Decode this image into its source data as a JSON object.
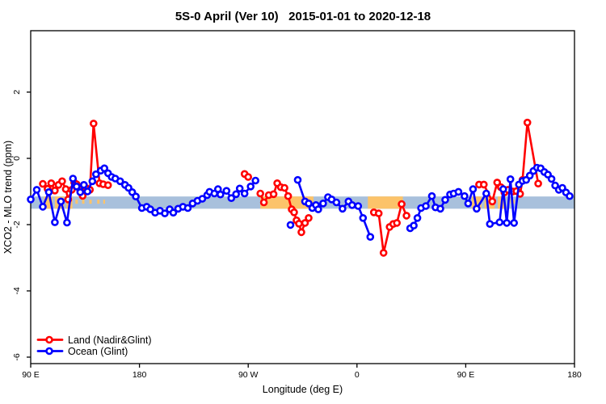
{
  "title": "5S-0 April (Ver 10)   2015-01-01 to 2020-12-18",
  "chart_data": {
    "type": "line",
    "title": "5S-0 April (Ver 10)   2015-01-01 to 2020-12-18",
    "xlabel": "Longitude (deg E)",
    "ylabel": "XCO2 - MLO trend (ppm)",
    "grid": false,
    "x_axis": {
      "domain_deg": [
        90,
        540
      ],
      "ticks": [
        {
          "deg": 90,
          "label": "90 E"
        },
        {
          "deg": 180,
          "label": "180"
        },
        {
          "deg": 270,
          "label": "90 W"
        },
        {
          "deg": 360,
          "label": "0"
        },
        {
          "deg": 450,
          "label": "90 E"
        },
        {
          "deg": 540,
          "label": "180"
        }
      ]
    },
    "y_axis": {
      "range": [
        -6.2,
        3.85
      ],
      "ticks": [
        {
          "value": 2,
          "label": "2"
        },
        {
          "value": 0,
          "label": "0"
        },
        {
          "value": -2,
          "label": "-2"
        },
        {
          "value": -4,
          "label": "-4"
        },
        {
          "value": -6,
          "label": "-6"
        }
      ]
    },
    "map_band": {
      "description": "latitude-strip map background: ocean blue with land in orange",
      "y_top": -1.15,
      "y_bottom": -1.52,
      "ocean_color": "#a8c0dc",
      "land_color": "#fcc36a",
      "land_segments_deg": [
        [
          101,
          108
        ],
        [
          110,
          117.5
        ],
        [
          119.5,
          124.5
        ],
        [
          280,
          324
        ],
        [
          369,
          398
        ],
        [
          455,
          463
        ],
        [
          465.5,
          474
        ],
        [
          476.5,
          483
        ]
      ],
      "land_dots_deg": [
        [
          127,
          129
        ],
        [
          132.5,
          134.5
        ],
        [
          138.5,
          140.5
        ],
        [
          145,
          147
        ],
        [
          150,
          151.5
        ],
        [
          485.5,
          487
        ],
        [
          489,
          490.5
        ]
      ]
    },
    "legend": {
      "position": "bottom-left",
      "entries": [
        {
          "label": "Land (Nadir&Glint)",
          "color": "#ff0000"
        },
        {
          "label": "Ocean (Glint)",
          "color": "#0000ff"
        }
      ]
    },
    "series": [
      {
        "name": "Land (Nadir&Glint)",
        "color": "#ff0000",
        "marker": "open-circle",
        "segments": [
          [
            [
              100,
              -0.77
            ],
            [
              104,
              -0.92
            ],
            [
              107,
              -0.75
            ],
            [
              110,
              -0.97
            ],
            [
              113,
              -0.8
            ],
            [
              116,
              -0.69
            ],
            [
              119,
              -0.93
            ],
            [
              121,
              -1.24
            ],
            [
              124,
              -0.95
            ],
            [
              126,
              -0.73
            ],
            [
              128,
              -0.78
            ],
            [
              131,
              -0.95
            ],
            [
              133,
              -1.13
            ],
            [
              136,
              -0.9
            ],
            [
              139,
              -0.95
            ],
            [
              142,
              1.05
            ],
            [
              147,
              -0.75
            ],
            [
              150,
              -0.78
            ],
            [
              154,
              -0.81
            ]
          ],
          [
            [
              267,
              -0.47
            ],
            [
              270,
              -0.56
            ]
          ],
          [
            [
              280,
              -1.06
            ],
            [
              283,
              -1.33
            ],
            [
              287,
              -1.11
            ],
            [
              291,
              -1.08
            ],
            [
              294,
              -0.75
            ],
            [
              297,
              -0.87
            ],
            [
              300,
              -0.89
            ],
            [
              303,
              -1.14
            ],
            [
              306,
              -1.54
            ],
            [
              308,
              -1.63
            ],
            [
              310,
              -1.87
            ],
            [
              312,
              -1.97
            ],
            [
              314,
              -2.23
            ],
            [
              317,
              -1.95
            ],
            [
              320,
              -1.8
            ]
          ],
          [
            [
              374,
              -1.63
            ],
            [
              378,
              -1.66
            ],
            [
              382,
              -2.85
            ],
            [
              387,
              -2.07
            ],
            [
              390,
              -1.98
            ],
            [
              393,
              -1.95
            ],
            [
              397,
              -1.38
            ],
            [
              401,
              -1.73
            ]
          ],
          [
            [
              461,
              -0.79
            ],
            [
              465,
              -0.79
            ],
            [
              472,
              -1.3
            ],
            [
              476,
              -0.73
            ],
            [
              479,
              -0.87
            ],
            [
              482,
              -1.03
            ],
            [
              485,
              -0.95
            ],
            [
              489,
              -1.0
            ],
            [
              492,
              -0.99
            ],
            [
              495,
              -1.07
            ],
            [
              497,
              -0.65
            ],
            [
              501,
              1.08
            ],
            [
              510,
              -0.76
            ]
          ]
        ]
      },
      {
        "name": "Ocean (Glint)",
        "color": "#0000ff",
        "marker": "open-circle",
        "segments": [
          [
            [
              90,
              -1.24
            ],
            [
              95,
              -0.95
            ],
            [
              100,
              -1.46
            ],
            [
              105,
              -1.02
            ],
            [
              110,
              -1.93
            ],
            [
              115,
              -1.3
            ],
            [
              120,
              -1.94
            ],
            [
              125,
              -0.61
            ],
            [
              128,
              -0.85
            ],
            [
              131,
              -1.02
            ],
            [
              134,
              -0.8
            ],
            [
              137,
              -1.0
            ],
            [
              141,
              -0.69
            ],
            [
              144,
              -0.48
            ],
            [
              148,
              -0.37
            ],
            [
              151,
              -0.3
            ],
            [
              154,
              -0.45
            ],
            [
              157,
              -0.56
            ],
            [
              160,
              -0.61
            ],
            [
              164,
              -0.69
            ],
            [
              168,
              -0.8
            ],
            [
              171,
              -0.89
            ],
            [
              174,
              -1.02
            ],
            [
              177,
              -1.15
            ],
            [
              182,
              -1.5
            ],
            [
              186,
              -1.46
            ],
            [
              189,
              -1.54
            ],
            [
              193,
              -1.64
            ],
            [
              197,
              -1.58
            ],
            [
              201,
              -1.66
            ],
            [
              205,
              -1.54
            ],
            [
              208,
              -1.64
            ],
            [
              212,
              -1.52
            ],
            [
              216,
              -1.46
            ],
            [
              220,
              -1.5
            ],
            [
              224,
              -1.36
            ],
            [
              228,
              -1.28
            ],
            [
              232,
              -1.22
            ],
            [
              236,
              -1.11
            ],
            [
              238,
              -1.01
            ],
            [
              242,
              -1.06
            ],
            [
              245,
              -0.93
            ],
            [
              247,
              -1.09
            ],
            [
              252,
              -0.98
            ],
            [
              256,
              -1.2
            ],
            [
              260,
              -1.08
            ],
            [
              263,
              -0.91
            ],
            [
              267,
              -1.06
            ],
            [
              272,
              -0.85
            ],
            [
              276,
              -0.67
            ]
          ],
          [
            [
              305,
              -2.01
            ]
          ],
          [
            [
              311,
              -0.65
            ],
            [
              317,
              -1.3
            ],
            [
              320,
              -1.36
            ],
            [
              323,
              -1.5
            ],
            [
              326,
              -1.41
            ],
            [
              328,
              -1.54
            ],
            [
              332,
              -1.36
            ],
            [
              336,
              -1.17
            ],
            [
              339,
              -1.24
            ],
            [
              343,
              -1.33
            ],
            [
              348,
              -1.52
            ],
            [
              353,
              -1.3
            ],
            [
              356,
              -1.41
            ],
            [
              361,
              -1.44
            ],
            [
              365,
              -1.8
            ],
            [
              371,
              -2.37
            ]
          ],
          [
            [
              404,
              -2.11
            ],
            [
              407,
              -2.03
            ],
            [
              410,
              -1.8
            ],
            [
              413,
              -1.5
            ],
            [
              417,
              -1.44
            ],
            [
              422,
              -1.14
            ],
            [
              425,
              -1.48
            ],
            [
              429,
              -1.52
            ],
            [
              433,
              -1.25
            ],
            [
              437,
              -1.09
            ],
            [
              440,
              -1.06
            ],
            [
              444,
              -1.01
            ],
            [
              449,
              -1.14
            ],
            [
              452,
              -1.36
            ],
            [
              456,
              -0.93
            ],
            [
              459,
              -1.52
            ],
            [
              467,
              -1.06
            ],
            [
              470,
              -1.98
            ],
            [
              478,
              -1.93
            ],
            [
              481,
              -0.93
            ],
            [
              484,
              -1.95
            ],
            [
              487,
              -0.63
            ],
            [
              490,
              -1.95
            ],
            [
              494,
              -0.79
            ],
            [
              497,
              -0.68
            ],
            [
              500,
              -0.65
            ],
            [
              503,
              -0.52
            ],
            [
              506,
              -0.38
            ],
            [
              509,
              -0.28
            ],
            [
              512,
              -0.3
            ],
            [
              515,
              -0.41
            ],
            [
              518,
              -0.49
            ],
            [
              521,
              -0.62
            ],
            [
              524,
              -0.82
            ],
            [
              527,
              -0.95
            ],
            [
              530,
              -0.89
            ],
            [
              533,
              -1.03
            ],
            [
              536,
              -1.14
            ]
          ]
        ]
      }
    ]
  }
}
